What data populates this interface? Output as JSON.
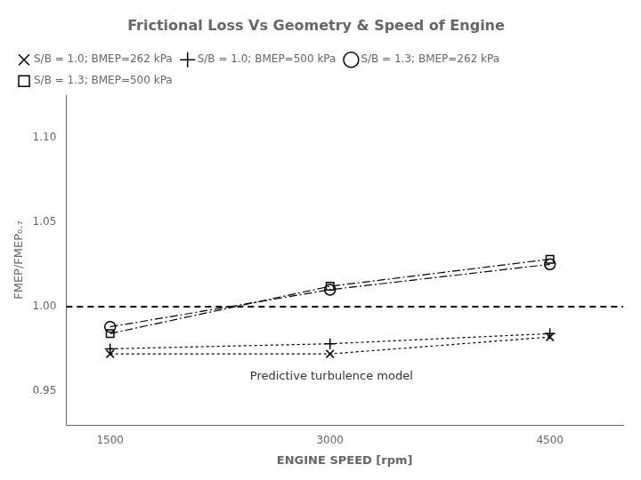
{
  "chart_data": {
    "type": "line",
    "title": "Frictional Loss Vs Geometry & Speed of Engine",
    "xlabel": "ENGINE SPEED [rpm]",
    "ylabel": "FMEP/FMEP₀.₇",
    "annotations": [
      "Predictive turbulence model"
    ],
    "xlim": [
      1200,
      5000
    ],
    "ylim": [
      0.93,
      1.125
    ],
    "xticks": [
      1500,
      3000,
      4500
    ],
    "yticks": [
      0.95,
      {
        "value": 1.0,
        "label": "1.00"
      },
      1.05,
      {
        "value": 1.1,
        "label": "1.10"
      }
    ],
    "grid": false,
    "legend": "upper left",
    "reference_line": {
      "y": 1.0,
      "color": "black",
      "line_style": "dashed"
    },
    "series": [
      {
        "name": "S/B = 1.0; BMEP=262 kPa",
        "x": [
          1500,
          3000,
          4500
        ],
        "values": [
          0.972,
          0.972,
          0.982
        ],
        "color": "black",
        "marker": "x",
        "line_style": "dotted"
      },
      {
        "name": "S/B = 1.0; BMEP=500 kPa",
        "x": [
          1500,
          3000,
          4500
        ],
        "values": [
          0.975,
          0.978,
          0.984
        ],
        "color": "black",
        "marker": "+",
        "line_style": "dotted"
      },
      {
        "name": "S/B = 1.3; BMEP=262 kPa",
        "x": [
          1500,
          3000,
          4500
        ],
        "values": [
          0.988,
          1.01,
          1.025
        ],
        "color": "black",
        "marker": "o",
        "line_style": "dashdot"
      },
      {
        "name": "S/B = 1.3; BMEP=500 kPa",
        "x": [
          1500,
          3000,
          4500
        ],
        "values": [
          0.984,
          1.012,
          1.028
        ],
        "color": "black",
        "marker": "s",
        "line_style": "dashdot"
      }
    ]
  }
}
